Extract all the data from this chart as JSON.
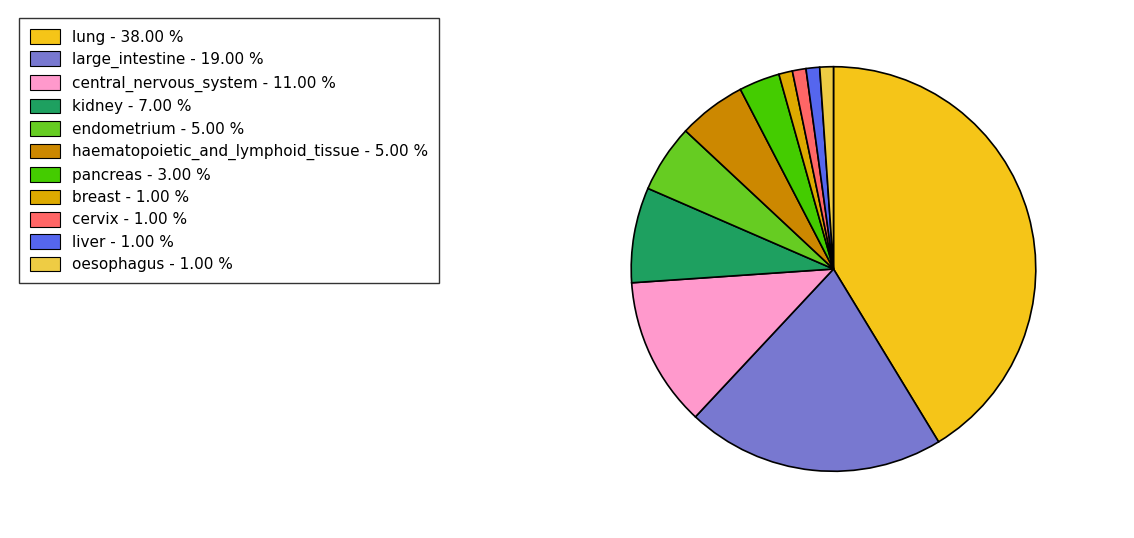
{
  "labels": [
    "lung",
    "large_intestine",
    "central_nervous_system",
    "kidney",
    "endometrium",
    "haematopoietic_and_lymphoid_tissue",
    "pancreas",
    "breast",
    "cervix",
    "liver",
    "oesophagus"
  ],
  "values": [
    38,
    19,
    11,
    7,
    5,
    5,
    3,
    1,
    1,
    1,
    1
  ],
  "colors": [
    "#F5C518",
    "#7878D0",
    "#FF99CC",
    "#1EA060",
    "#66CC22",
    "#CC8800",
    "#44CC00",
    "#DDAA00",
    "#FF6666",
    "#5566EE",
    "#EECC44"
  ],
  "legend_labels": [
    "lung - 38.00 %",
    "large_intestine - 19.00 %",
    "central_nervous_system - 11.00 %",
    "kidney - 7.00 %",
    "endometrium - 5.00 %",
    "haematopoietic_and_lymphoid_tissue - 5.00 %",
    "pancreas - 3.00 %",
    "breast - 1.00 %",
    "cervix - 1.00 %",
    "liver - 1.00 %",
    "oesophagus - 1.00 %"
  ],
  "startangle": 90,
  "figsize": [
    11.34,
    5.38
  ],
  "dpi": 100
}
